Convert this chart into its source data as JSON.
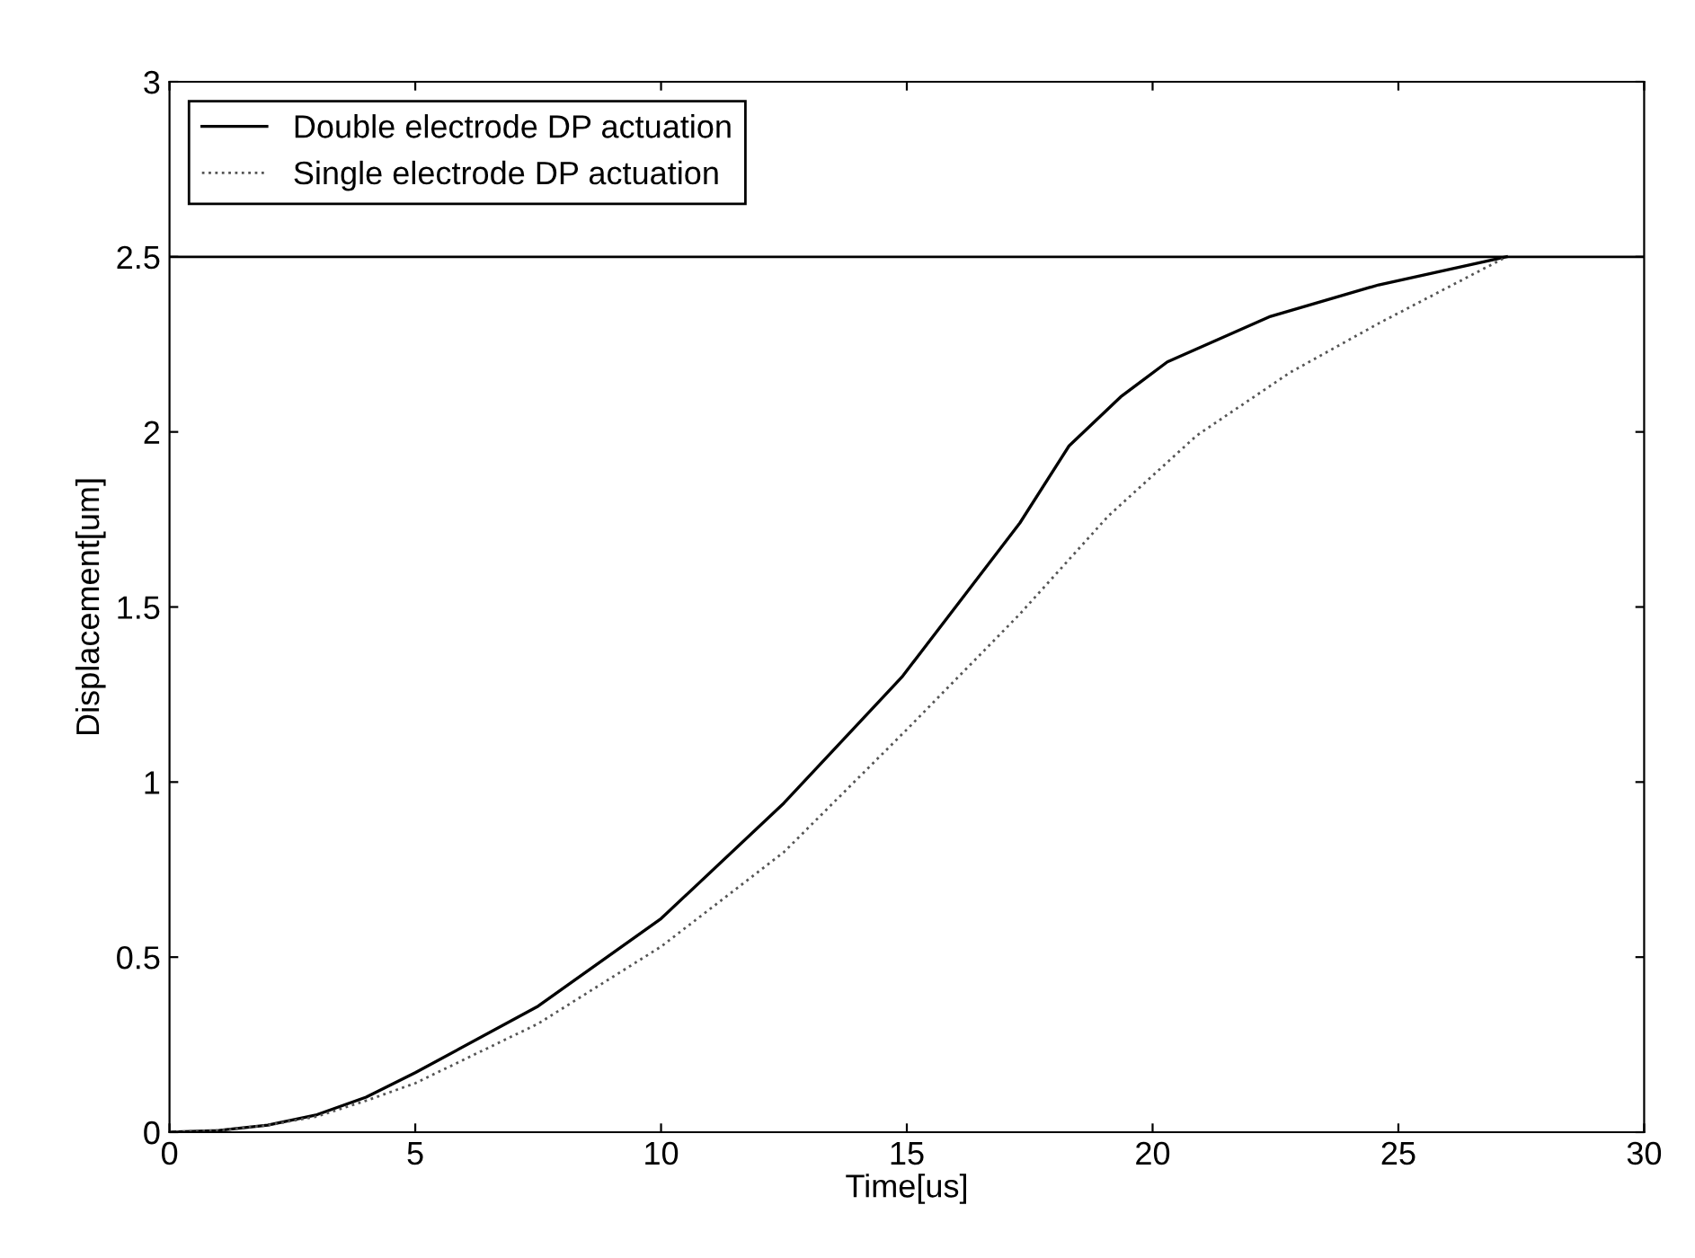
{
  "chart_data": {
    "type": "line",
    "xlabel": "Time[us]",
    "ylabel": "Displacement[um]",
    "xlim": [
      0,
      30
    ],
    "ylim": [
      0,
      3
    ],
    "xticks": [
      0,
      5,
      10,
      15,
      20,
      25,
      30
    ],
    "yticks": [
      0,
      0.5,
      1,
      1.5,
      2,
      2.5,
      3
    ],
    "grid": false,
    "legend": "top left",
    "ref_lines": [
      {
        "axis": "y",
        "value": 2.5,
        "color": "#000000",
        "line_style": "solid"
      }
    ],
    "series": [
      {
        "name": "Double electrode DP actuation",
        "color": "#000000",
        "line_style": "solid",
        "x": [
          0,
          1,
          2,
          3,
          4,
          5,
          7.5,
          10,
          12.5,
          14.9,
          17.3,
          18.3,
          19.35,
          20.3,
          22.4,
          24.6,
          27.2
        ],
        "values": [
          0,
          0.005,
          0.02,
          0.05,
          0.1,
          0.17,
          0.36,
          0.61,
          0.94,
          1.3,
          1.74,
          1.96,
          2.1,
          2.2,
          2.33,
          2.42,
          2.5
        ]
      },
      {
        "name": "Single electrode DP actuation",
        "color": "#555555",
        "line_style": "dotted",
        "x": [
          0,
          1,
          2,
          3,
          4,
          5,
          7.5,
          10,
          12.5,
          15,
          17.3,
          19.1,
          20.9,
          22.8,
          24.6,
          27.2
        ],
        "values": [
          0,
          0.005,
          0.02,
          0.045,
          0.09,
          0.14,
          0.31,
          0.53,
          0.8,
          1.15,
          1.48,
          1.76,
          1.99,
          2.17,
          2.31,
          2.5
        ]
      }
    ]
  }
}
